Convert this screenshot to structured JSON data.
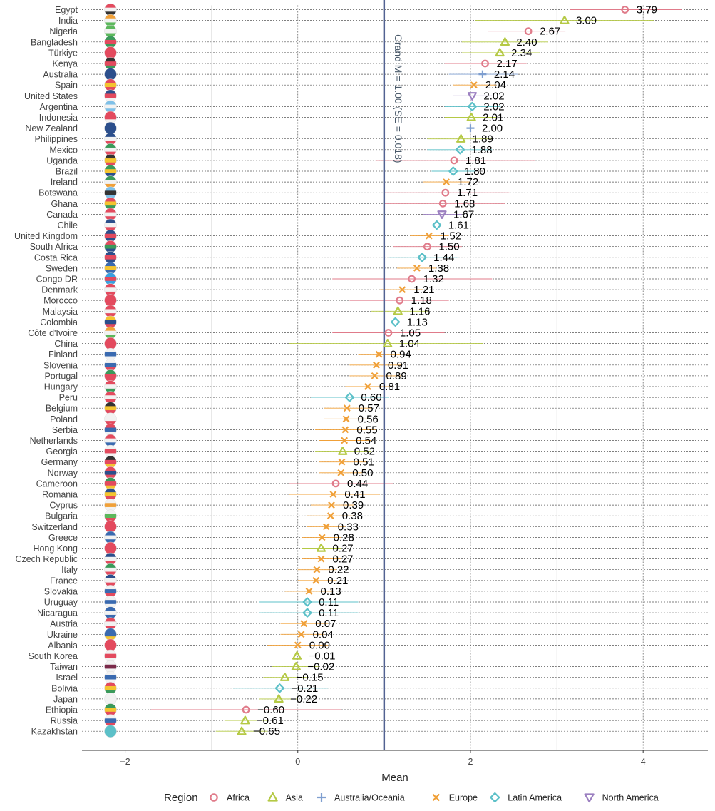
{
  "chart_data": {
    "type": "dot-errorbar",
    "xlabel": "Mean",
    "xlim": [
      -2.5,
      4.75
    ],
    "xticks": [
      -2,
      0,
      2,
      4
    ],
    "xtick_labels": [
      "−2",
      "0",
      "2",
      "4"
    ],
    "grand_mean": 1.0,
    "grand_mean_label": "Grand M = 1.00 (SE = 0.018)",
    "legend_title": "Region",
    "regions": [
      {
        "name": "Africa",
        "color": "#e07b8a",
        "marker": "circle"
      },
      {
        "name": "Asia",
        "color": "#b5c945",
        "marker": "triangle-up"
      },
      {
        "name": "Australia/Oceania",
        "color": "#7f9fd0",
        "marker": "plus"
      },
      {
        "name": "Europe",
        "color": "#f0a038",
        "marker": "cross"
      },
      {
        "name": "Latin America",
        "color": "#5cc0c8",
        "marker": "diamond"
      },
      {
        "name": "North America",
        "color": "#9b7fc0",
        "marker": "triangle-down"
      }
    ],
    "countries": [
      {
        "name": "Egypt",
        "label": "3.79",
        "value": 3.79,
        "low": 3.15,
        "high": 4.45,
        "region": "Africa",
        "flag": [
          "#e34a5e",
          "#f2f2f2",
          "#333333"
        ]
      },
      {
        "name": "India",
        "label": "3.09",
        "value": 3.09,
        "low": 2.05,
        "high": 4.12,
        "region": "Asia",
        "flag": [
          "#f0a038",
          "#f2f2f2",
          "#5cb85c"
        ]
      },
      {
        "name": "Nigeria",
        "label": "2.67",
        "value": 2.67,
        "low": 2.2,
        "high": 3.1,
        "region": "Africa",
        "flag": [
          "#5cb85c",
          "#f2f2f2",
          "#5cb85c"
        ]
      },
      {
        "name": "Bangladesh",
        "label": "2.40",
        "value": 2.4,
        "low": 1.9,
        "high": 2.9,
        "region": "Asia",
        "flag": [
          "#3a9a5a",
          "#e34a5e",
          "#3a9a5a"
        ]
      },
      {
        "name": "Türkiye",
        "label": "2.34",
        "value": 2.34,
        "low": 1.9,
        "high": 2.8,
        "region": "Asia",
        "flag": [
          "#e34a5e",
          "#e34a5e",
          "#e34a5e"
        ]
      },
      {
        "name": "Kenya",
        "label": "2.17",
        "value": 2.17,
        "low": 1.7,
        "high": 2.65,
        "region": "Africa",
        "flag": [
          "#333333",
          "#e34a5e",
          "#3a9a5a"
        ]
      },
      {
        "name": "Australia",
        "label": "2.14",
        "value": 2.14,
        "low": 1.75,
        "high": 2.55,
        "region": "Australia/Oceania",
        "flag": [
          "#2c4f8c",
          "#2c4f8c",
          "#2c4f8c"
        ]
      },
      {
        "name": "Spain",
        "label": "2.04",
        "value": 2.04,
        "low": 1.8,
        "high": 2.3,
        "region": "Europe",
        "flag": [
          "#e34a5e",
          "#f4c430",
          "#e34a5e"
        ]
      },
      {
        "name": "United States",
        "label": "2.02",
        "value": 2.02,
        "low": 1.8,
        "high": 2.25,
        "region": "North America",
        "flag": [
          "#2c4f8c",
          "#e34a5e",
          "#f2f2f2"
        ]
      },
      {
        "name": "Argentina",
        "label": "2.02",
        "value": 2.02,
        "low": 1.7,
        "high": 2.35,
        "region": "Latin America",
        "flag": [
          "#7ec0e8",
          "#f2f2f2",
          "#7ec0e8"
        ]
      },
      {
        "name": "Indonesia",
        "label": "2.01",
        "value": 2.01,
        "low": 1.7,
        "high": 2.3,
        "region": "Asia",
        "flag": [
          "#e34a5e",
          "#e34a5e",
          "#f2f2f2"
        ]
      },
      {
        "name": "New Zealand",
        "label": "2.00",
        "value": 2.0,
        "low": 1.7,
        "high": 2.3,
        "region": "Australia/Oceania",
        "flag": [
          "#2c4f8c",
          "#2c4f8c",
          "#2c4f8c"
        ]
      },
      {
        "name": "Philippines",
        "label": "1.89",
        "value": 1.89,
        "low": 1.5,
        "high": 2.25,
        "region": "Asia",
        "flag": [
          "#2c4f8c",
          "#f2f2f2",
          "#e34a5e"
        ]
      },
      {
        "name": "Mexico",
        "label": "1.88",
        "value": 1.88,
        "low": 1.5,
        "high": 2.25,
        "region": "Latin America",
        "flag": [
          "#3a9a5a",
          "#f2f2f2",
          "#e34a5e"
        ]
      },
      {
        "name": "Uganda",
        "label": "1.81",
        "value": 1.81,
        "low": 0.9,
        "high": 2.75,
        "region": "Africa",
        "flag": [
          "#333333",
          "#f4c430",
          "#e34a5e"
        ]
      },
      {
        "name": "Brazil",
        "label": "1.80",
        "value": 1.8,
        "low": 1.55,
        "high": 2.05,
        "region": "Latin America",
        "flag": [
          "#3a9a5a",
          "#f4c430",
          "#2c4f8c"
        ]
      },
      {
        "name": "Ireland",
        "label": "1.72",
        "value": 1.72,
        "low": 1.45,
        "high": 2.0,
        "region": "Europe",
        "flag": [
          "#3a9a5a",
          "#f2f2f2",
          "#f0a038"
        ]
      },
      {
        "name": "Botswana",
        "label": "1.71",
        "value": 1.71,
        "low": 1.0,
        "high": 2.45,
        "region": "Africa",
        "flag": [
          "#7ec0e8",
          "#333333",
          "#7ec0e8"
        ]
      },
      {
        "name": "Ghana",
        "label": "1.68",
        "value": 1.68,
        "low": 1.0,
        "high": 2.4,
        "region": "Africa",
        "flag": [
          "#e34a5e",
          "#f4c430",
          "#3a9a5a"
        ]
      },
      {
        "name": "Canada",
        "label": "1.67",
        "value": 1.67,
        "low": 1.45,
        "high": 1.9,
        "region": "North America",
        "flag": [
          "#e34a5e",
          "#f2f2f2",
          "#e34a5e"
        ]
      },
      {
        "name": "Chile",
        "label": "1.61",
        "value": 1.61,
        "low": 1.35,
        "high": 1.9,
        "region": "Latin America",
        "flag": [
          "#2c4f8c",
          "#f2f2f2",
          "#e34a5e"
        ]
      },
      {
        "name": "United Kingdom",
        "label": "1.52",
        "value": 1.52,
        "low": 1.3,
        "high": 1.75,
        "region": "Europe",
        "flag": [
          "#2c4f8c",
          "#e34a5e",
          "#2c4f8c"
        ]
      },
      {
        "name": "South Africa",
        "label": "1.50",
        "value": 1.5,
        "low": 1.1,
        "high": 1.9,
        "region": "Africa",
        "flag": [
          "#e34a5e",
          "#3a9a5a",
          "#2c4f8c"
        ]
      },
      {
        "name": "Costa Rica",
        "label": "1.44",
        "value": 1.44,
        "low": 1.05,
        "high": 1.85,
        "region": "Latin America",
        "flag": [
          "#2c4f8c",
          "#e34a5e",
          "#2c4f8c"
        ]
      },
      {
        "name": "Sweden",
        "label": "1.38",
        "value": 1.38,
        "low": 1.15,
        "high": 1.6,
        "region": "Europe",
        "flag": [
          "#3a6ab0",
          "#f4c430",
          "#3a6ab0"
        ]
      },
      {
        "name": "Congo DR",
        "label": "1.32",
        "value": 1.32,
        "low": 0.4,
        "high": 2.25,
        "region": "Africa",
        "flag": [
          "#3aa0e0",
          "#e34a5e",
          "#3aa0e0"
        ]
      },
      {
        "name": "Denmark",
        "label": "1.21",
        "value": 1.21,
        "low": 0.95,
        "high": 1.45,
        "region": "Europe",
        "flag": [
          "#e34a5e",
          "#f2f2f2",
          "#e34a5e"
        ]
      },
      {
        "name": "Morocco",
        "label": "1.18",
        "value": 1.18,
        "low": 0.6,
        "high": 1.75,
        "region": "Africa",
        "flag": [
          "#e34a5e",
          "#e34a5e",
          "#e34a5e"
        ]
      },
      {
        "name": "Malaysia",
        "label": "1.16",
        "value": 1.16,
        "low": 0.85,
        "high": 1.5,
        "region": "Asia",
        "flag": [
          "#e34a5e",
          "#f2f2f2",
          "#e34a5e"
        ]
      },
      {
        "name": "Colombia",
        "label": "1.13",
        "value": 1.13,
        "low": 0.8,
        "high": 1.45,
        "region": "Latin America",
        "flag": [
          "#f4c430",
          "#2c4f8c",
          "#e34a5e"
        ]
      },
      {
        "name": "Côte d'Ivoire",
        "label": "1.05",
        "value": 1.05,
        "low": 0.4,
        "high": 1.7,
        "region": "Africa",
        "flag": [
          "#f0a038",
          "#f2f2f2",
          "#5cb85c"
        ]
      },
      {
        "name": "China",
        "label": "1.04",
        "value": 1.04,
        "low": -0.1,
        "high": 2.15,
        "region": "Asia",
        "flag": [
          "#e34a5e",
          "#e34a5e",
          "#e34a5e"
        ]
      },
      {
        "name": "Finland",
        "label": "0.94",
        "value": 0.94,
        "low": 0.7,
        "high": 1.2,
        "region": "Europe",
        "flag": [
          "#f2f2f2",
          "#3a6ab0",
          "#f2f2f2"
        ]
      },
      {
        "name": "Slovenia",
        "label": "0.91",
        "value": 0.91,
        "low": 0.6,
        "high": 1.2,
        "region": "Europe",
        "flag": [
          "#f2f2f2",
          "#3a6ab0",
          "#e34a5e"
        ]
      },
      {
        "name": "Portugal",
        "label": "0.89",
        "value": 0.89,
        "low": 0.6,
        "high": 1.2,
        "region": "Europe",
        "flag": [
          "#3a9a5a",
          "#e34a5e",
          "#e34a5e"
        ]
      },
      {
        "name": "Hungary",
        "label": "0.81",
        "value": 0.81,
        "low": 0.55,
        "high": 1.1,
        "region": "Europe",
        "flag": [
          "#e34a5e",
          "#f2f2f2",
          "#3a9a5a"
        ]
      },
      {
        "name": "Peru",
        "label": "0.60",
        "value": 0.6,
        "low": 0.15,
        "high": 1.05,
        "region": "Latin America",
        "flag": [
          "#e34a5e",
          "#f2f2f2",
          "#e34a5e"
        ]
      },
      {
        "name": "Belgium",
        "label": "0.57",
        "value": 0.57,
        "low": 0.3,
        "high": 0.85,
        "region": "Europe",
        "flag": [
          "#333333",
          "#f4c430",
          "#e34a5e"
        ]
      },
      {
        "name": "Poland",
        "label": "0.56",
        "value": 0.56,
        "low": 0.3,
        "high": 0.85,
        "region": "Europe",
        "flag": [
          "#f2f2f2",
          "#f2f2f2",
          "#e34a5e"
        ]
      },
      {
        "name": "Serbia",
        "label": "0.55",
        "value": 0.55,
        "low": 0.2,
        "high": 0.9,
        "region": "Europe",
        "flag": [
          "#e34a5e",
          "#3a6ab0",
          "#f2f2f2"
        ]
      },
      {
        "name": "Netherlands",
        "label": "0.54",
        "value": 0.54,
        "low": 0.25,
        "high": 0.85,
        "region": "Europe",
        "flag": [
          "#e34a5e",
          "#f2f2f2",
          "#3a6ab0"
        ]
      },
      {
        "name": "Georgia",
        "label": "0.52",
        "value": 0.52,
        "low": 0.2,
        "high": 0.85,
        "region": "Asia",
        "flag": [
          "#f2f2f2",
          "#e34a5e",
          "#f2f2f2"
        ]
      },
      {
        "name": "Germany",
        "label": "0.51",
        "value": 0.51,
        "low": 0.25,
        "high": 0.8,
        "region": "Europe",
        "flag": [
          "#333333",
          "#e34a5e",
          "#f4c430"
        ]
      },
      {
        "name": "Norway",
        "label": "0.50",
        "value": 0.5,
        "low": 0.25,
        "high": 0.75,
        "region": "Europe",
        "flag": [
          "#e34a5e",
          "#2c4f8c",
          "#e34a5e"
        ]
      },
      {
        "name": "Cameroon",
        "label": "0.44",
        "value": 0.44,
        "low": -0.1,
        "high": 1.1,
        "region": "Africa",
        "flag": [
          "#3a9a5a",
          "#e34a5e",
          "#f4c430"
        ]
      },
      {
        "name": "Romania",
        "label": "0.41",
        "value": 0.41,
        "low": -0.1,
        "high": 0.95,
        "region": "Europe",
        "flag": [
          "#2c4f8c",
          "#f4c430",
          "#e34a5e"
        ]
      },
      {
        "name": "Cyprus",
        "label": "0.39",
        "value": 0.39,
        "low": 0.15,
        "high": 0.65,
        "region": "Europe",
        "flag": [
          "#f2f2f2",
          "#f0a038",
          "#f2f2f2"
        ]
      },
      {
        "name": "Bulgaria",
        "label": "0.38",
        "value": 0.38,
        "low": 0.1,
        "high": 0.65,
        "region": "Europe",
        "flag": [
          "#f2f2f2",
          "#5cb85c",
          "#e34a5e"
        ]
      },
      {
        "name": "Switzerland",
        "label": "0.33",
        "value": 0.33,
        "low": 0.1,
        "high": 0.55,
        "region": "Europe",
        "flag": [
          "#e34a5e",
          "#e34a5e",
          "#e34a5e"
        ]
      },
      {
        "name": "Greece",
        "label": "0.28",
        "value": 0.28,
        "low": 0.05,
        "high": 0.5,
        "region": "Europe",
        "flag": [
          "#3a6ab0",
          "#f2f2f2",
          "#3a6ab0"
        ]
      },
      {
        "name": "Hong Kong",
        "label": "0.27",
        "value": 0.27,
        "low": 0.05,
        "high": 0.5,
        "region": "Asia",
        "flag": [
          "#e34a5e",
          "#e34a5e",
          "#e34a5e"
        ]
      },
      {
        "name": "Czech Republic",
        "label": "0.27",
        "value": 0.27,
        "low": 0.05,
        "high": 0.5,
        "region": "Europe",
        "flag": [
          "#2c4f8c",
          "#f2f2f2",
          "#e34a5e"
        ]
      },
      {
        "name": "Italy",
        "label": "0.22",
        "value": 0.22,
        "low": 0.0,
        "high": 0.45,
        "region": "Europe",
        "flag": [
          "#3a9a5a",
          "#f2f2f2",
          "#e34a5e"
        ]
      },
      {
        "name": "France",
        "label": "0.21",
        "value": 0.21,
        "low": 0.0,
        "high": 0.45,
        "region": "Europe",
        "flag": [
          "#2c4f8c",
          "#f2f2f2",
          "#e34a5e"
        ]
      },
      {
        "name": "Slovakia",
        "label": "0.13",
        "value": 0.13,
        "low": -0.15,
        "high": 0.4,
        "region": "Europe",
        "flag": [
          "#f2f2f2",
          "#3a6ab0",
          "#e34a5e"
        ]
      },
      {
        "name": "Uruguay",
        "label": "0.11",
        "value": 0.11,
        "low": -0.45,
        "high": 0.7,
        "region": "Latin America",
        "flag": [
          "#f2f2f2",
          "#3a6ab0",
          "#f2f2f2"
        ]
      },
      {
        "name": "Nicaragua",
        "label": "0.11",
        "value": 0.11,
        "low": -0.45,
        "high": 0.7,
        "region": "Latin America",
        "flag": [
          "#3a6ab0",
          "#f2f2f2",
          "#3a6ab0"
        ]
      },
      {
        "name": "Austria",
        "label": "0.07",
        "value": 0.07,
        "low": -0.2,
        "high": 0.35,
        "region": "Europe",
        "flag": [
          "#e34a5e",
          "#f2f2f2",
          "#e34a5e"
        ]
      },
      {
        "name": "Ukraine",
        "label": "0.04",
        "value": 0.04,
        "low": -0.2,
        "high": 0.3,
        "region": "Europe",
        "flag": [
          "#3a6ab0",
          "#3a6ab0",
          "#f4c430"
        ]
      },
      {
        "name": "Albania",
        "label": "0.00",
        "value": 0.0,
        "low": -0.35,
        "high": 0.35,
        "region": "Europe",
        "flag": [
          "#e34a5e",
          "#e34a5e",
          "#e34a5e"
        ]
      },
      {
        "name": "South Korea",
        "label": "−0.01",
        "value": -0.01,
        "low": -0.25,
        "high": 0.25,
        "region": "Asia",
        "flag": [
          "#f2f2f2",
          "#e34a5e",
          "#f2f2f2"
        ]
      },
      {
        "name": "Taiwan",
        "label": "−0.02",
        "value": -0.02,
        "low": -0.3,
        "high": 0.25,
        "region": "Asia",
        "flag": [
          "#f2f2f2",
          "#7a2a4a",
          "#f2f2f2"
        ]
      },
      {
        "name": "Israel",
        "label": "−0.15",
        "value": -0.15,
        "low": -0.4,
        "high": 0.1,
        "region": "Asia",
        "flag": [
          "#f2f2f2",
          "#3a6ab0",
          "#f2f2f2"
        ]
      },
      {
        "name": "Bolivia",
        "label": "−0.21",
        "value": -0.21,
        "low": -0.75,
        "high": 0.35,
        "region": "Latin America",
        "flag": [
          "#e34a5e",
          "#f4c430",
          "#3a9a5a"
        ]
      },
      {
        "name": "Japan",
        "label": "−0.22",
        "value": -0.22,
        "low": -0.45,
        "high": 0.0,
        "region": "Asia",
        "flag": [
          "#f2f2f2",
          "#f2f2f2",
          "#f2f2f2"
        ]
      },
      {
        "name": "Ethiopia",
        "label": "−0.60",
        "value": -0.6,
        "low": -1.7,
        "high": 0.5,
        "region": "Africa",
        "flag": [
          "#3a9a5a",
          "#f4c430",
          "#e34a5e"
        ]
      },
      {
        "name": "Russia",
        "label": "−0.61",
        "value": -0.61,
        "low": -0.85,
        "high": -0.35,
        "region": "Asia",
        "flag": [
          "#f2f2f2",
          "#3a6ab0",
          "#e34a5e"
        ]
      },
      {
        "name": "Kazakhstan",
        "label": "−0.65",
        "value": -0.65,
        "low": -0.95,
        "high": -0.35,
        "region": "Asia",
        "flag": [
          "#5cc0c8",
          "#5cc0c8",
          "#5cc0c8"
        ]
      }
    ]
  }
}
